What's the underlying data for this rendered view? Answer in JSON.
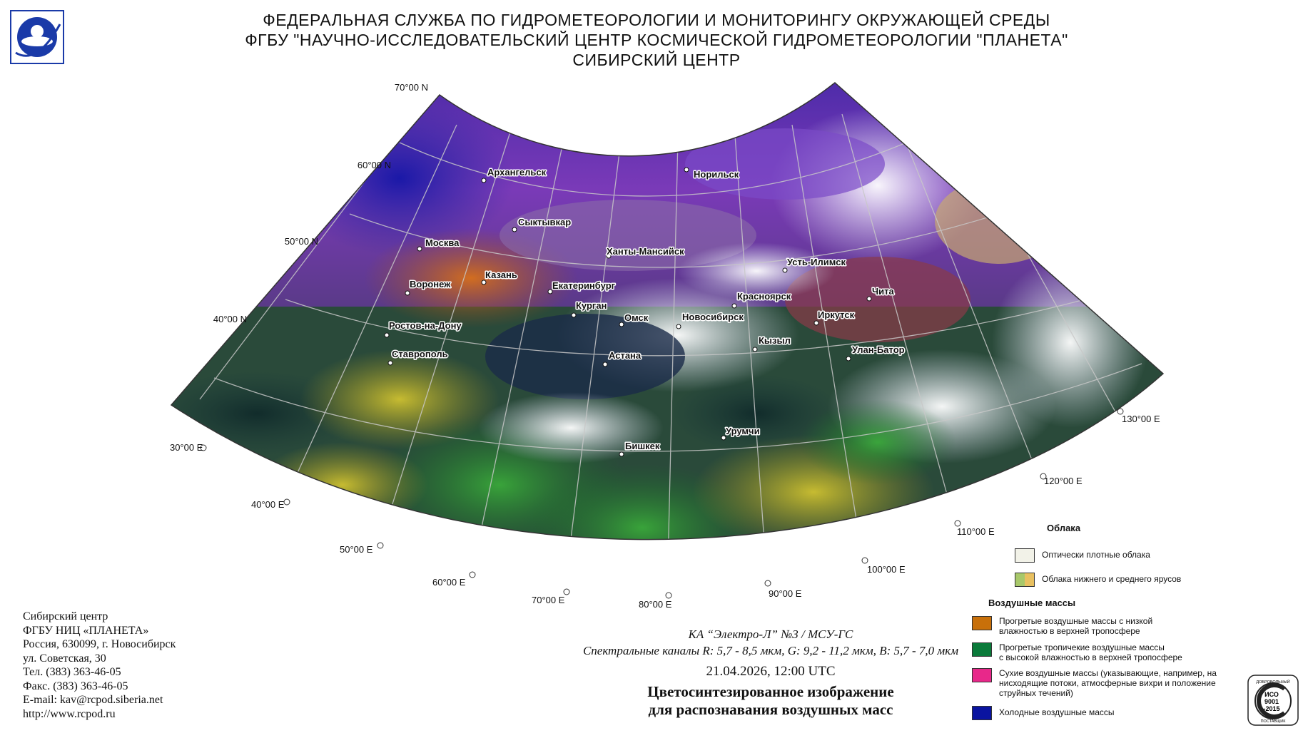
{
  "header": {
    "line1": "ФЕДЕРАЛЬНАЯ СЛУЖБА ПО ГИДРОМЕТЕОРОЛОГИИ И МОНИТОРИНГУ ОКРУЖАЮЩЕЙ СРЕДЫ",
    "line2": "ФГБУ \"НАУЧНО-ИССЛЕДОВАТЕЛЬСКИЙ ЦЕНТР КОСМИЧЕСКОЙ ГИДРОМЕТЕОРОЛОГИИ \"ПЛАНЕТА\"",
    "line3": "СИБИРСКИЙ ЦЕНТР"
  },
  "latitude_labels": [
    "70°00 N",
    "60°00 N",
    "50°00 N",
    "40°00 N"
  ],
  "longitude_labels": [
    "30°00 E",
    "40°00 E",
    "50°00 E",
    "60°00 E",
    "70°00 E",
    "80°00 E",
    "90°00 E",
    "100°00 E",
    "110°00 E",
    "120°00 E",
    "130°00 E"
  ],
  "cities": [
    "Архангельск",
    "Норильск",
    "Сыктывкар",
    "Москва",
    "Ханты-Мансийск",
    "Усть-Илимск",
    "Казань",
    "Воронеж",
    "Екатеринбург",
    "Красноярск",
    "Чита",
    "Курган",
    "Омск",
    "Новосибирск",
    "Иркутск",
    "Ростов-на-Дону",
    "Кызыл",
    "Улан-Батор",
    "Ставрополь",
    "Астана",
    "Урумчи",
    "Бишкек"
  ],
  "address": {
    "line1": "Сибирский центр",
    "line2": "ФГБУ НИЦ «ПЛАНЕТА»",
    "line3": "Россия, 630099, г. Новосибирск",
    "line4": "ул. Советская, 30",
    "line5": "Тел. (383) 363-46-05",
    "line6": "Факс. (383) 363-46-05",
    "line7": "E-mail: kav@rcpod.siberia.net",
    "line8": "http://www.rcpod.ru"
  },
  "caption": {
    "satellite": "КА “Электро-Л” №3 / МСУ-ГС",
    "channels": "Спектральные каналы R: 5,7 - 8,5 мкм, G: 9,2 - 11,2 мкм, B: 5,7 - 7,0 мкм",
    "datetime": "21.04.2026, 12:00 UTC",
    "title1": "Цветосинтезированное изображение",
    "title2": "для распознавания воздушных масс"
  },
  "legend": {
    "clouds_header": "Облака",
    "clouds": [
      {
        "label": "Оптически плотные облака",
        "color": "#f2f2e8"
      },
      {
        "label": "Облака нижнего и среднего ярусов",
        "colors": [
          "#a8c86a",
          "#e8c060"
        ]
      }
    ],
    "air_header": "Воздушные массы",
    "air": [
      {
        "line1": "Прогретые воздушные массы с низкой",
        "line2": "влажностью в верхней тропосфере",
        "line3": "",
        "color": "#c8700a"
      },
      {
        "line1": "Прогретые тропичекие воздушные массы",
        "line2": "с высокой влажностью в верхней тропосфере",
        "line3": "",
        "color": "#0a7a3a"
      },
      {
        "line1": "Сухие воздушные массы (указывающие, например, на",
        "line2": "нисходящие потоки, атмосферные вихри и положение",
        "line3": "струйных течений)",
        "color": "#e8288a"
      },
      {
        "line1": "Холодные воздушные массы",
        "line2": "",
        "line3": "",
        "color": "#0a14a0"
      }
    ]
  },
  "iso_badge": {
    "top": "ДОБРОВОЛЬНЫЙ",
    "mid1": "ИСО",
    "mid2": "9001",
    "mid3": "-2015",
    "bottom": "ПОСТАВЩИК"
  }
}
